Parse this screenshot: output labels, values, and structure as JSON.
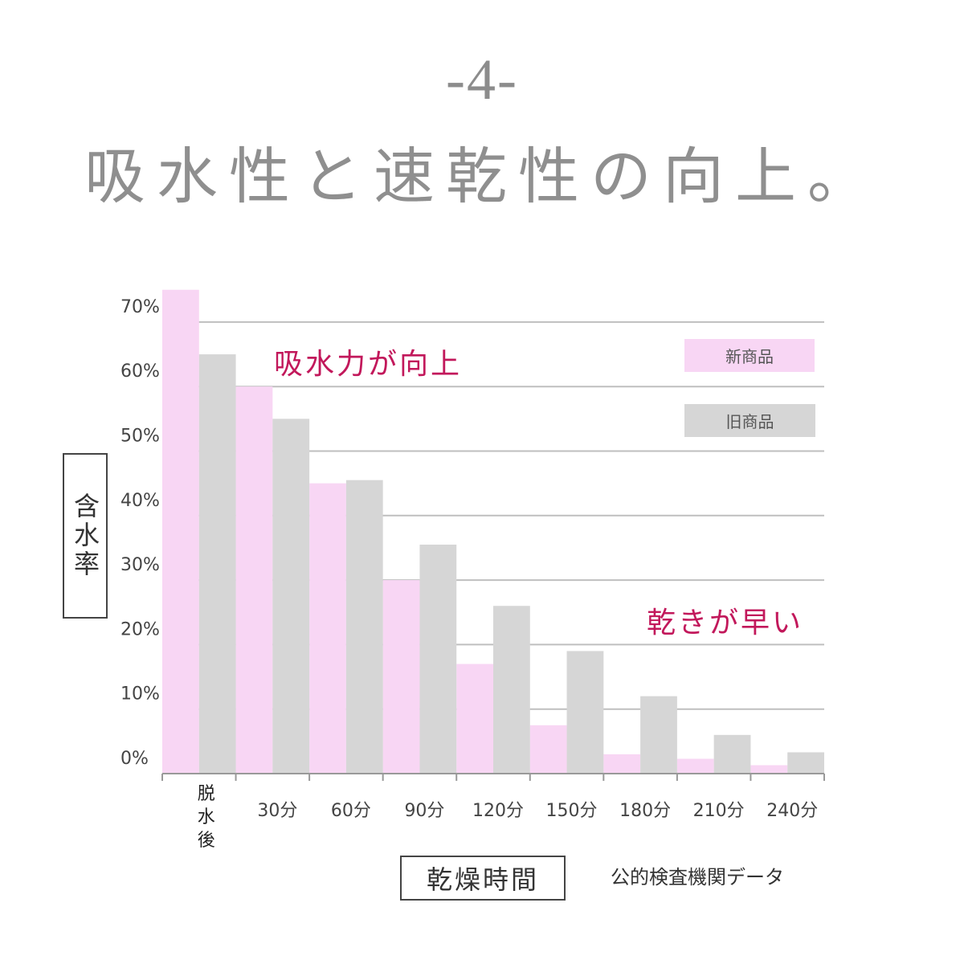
{
  "header": {
    "number": "-4-",
    "title": "吸水性と速乾性の向上。"
  },
  "annotations": {
    "absorb": "吸水力が向上",
    "dry": "乾きが早い"
  },
  "source": "公的検査機関データ",
  "colors": {
    "new": "#f8d6f4",
    "old": "#d6d6d6",
    "accent": "#c2185b",
    "grid": "#bfbfbf"
  },
  "chart_data": {
    "type": "bar",
    "xlabel": "乾燥時間",
    "ylabel": "含水率",
    "ylim": [
      0,
      75
    ],
    "yticks": [
      "0%",
      "10%",
      "20%",
      "30%",
      "40%",
      "50%",
      "60%",
      "70%"
    ],
    "categories": [
      "脱水後",
      "30分",
      "60分",
      "90分",
      "120分",
      "150分",
      "180分",
      "210分",
      "240分"
    ],
    "legend_position": "top-right",
    "grid": true,
    "series": [
      {
        "name": "新商品",
        "values": [
          75,
          60,
          45,
          30,
          17,
          7.5,
          3,
          2.3,
          1.3
        ]
      },
      {
        "name": "旧商品",
        "values": [
          65,
          55,
          45.5,
          35.5,
          26,
          19,
          12,
          6,
          3.3
        ]
      }
    ]
  }
}
